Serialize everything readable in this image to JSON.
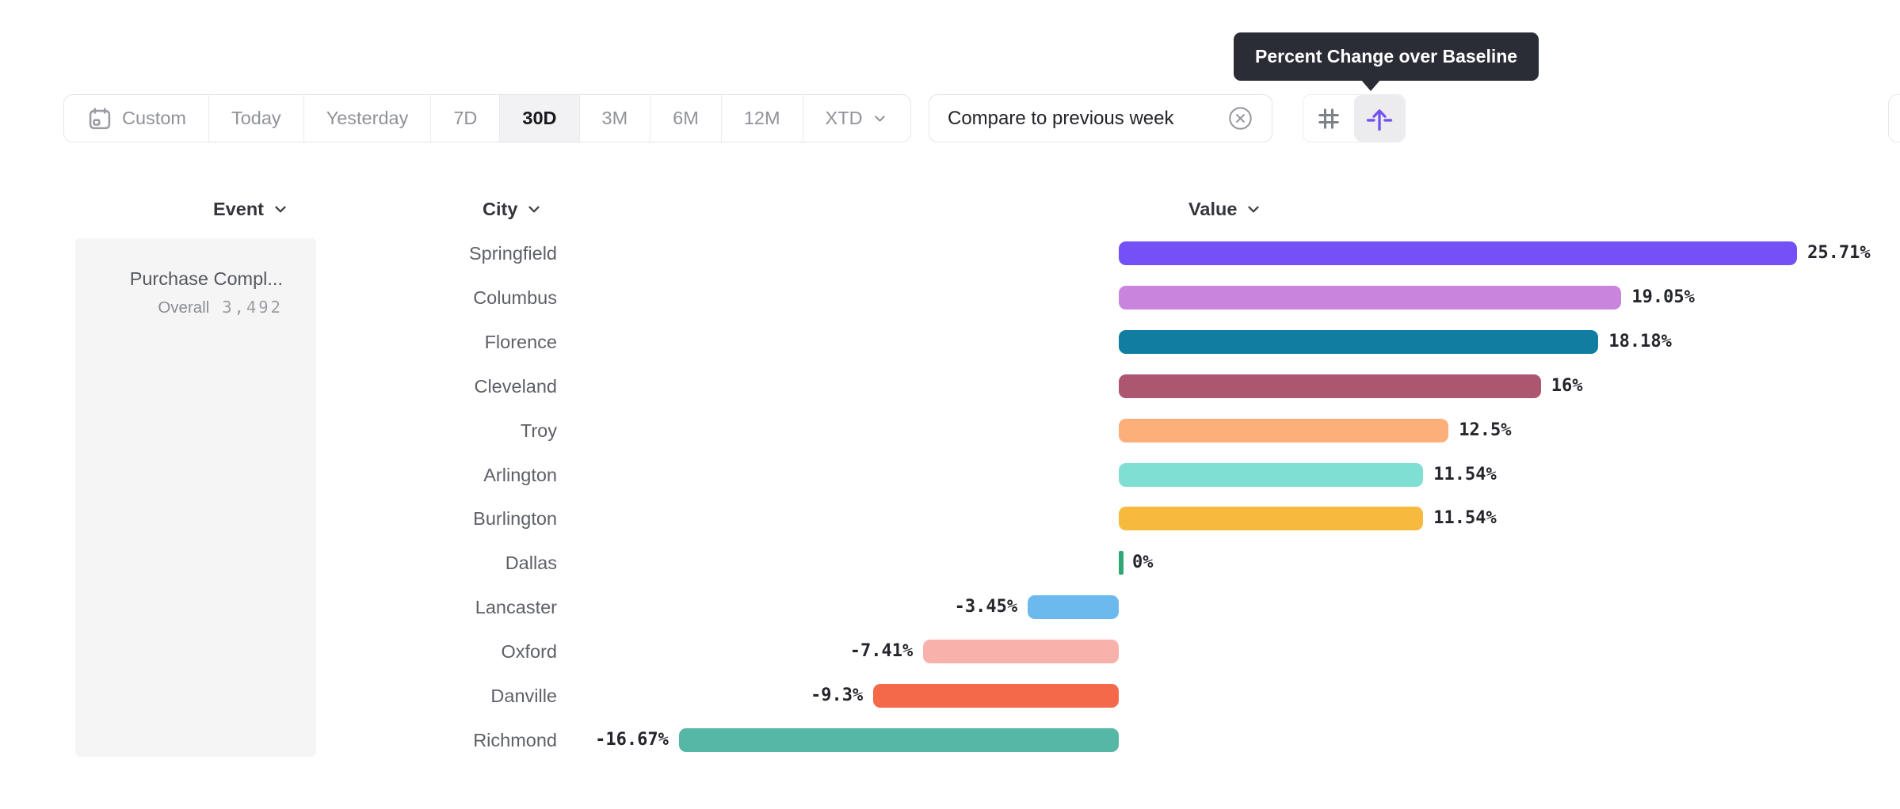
{
  "tooltip": {
    "text": "Percent Change over Baseline"
  },
  "toolbar": {
    "date_ranges": [
      {
        "label": "Custom",
        "icon": "calendar-icon",
        "selected": false
      },
      {
        "label": "Today",
        "selected": false
      },
      {
        "label": "Yesterday",
        "selected": false
      },
      {
        "label": "7D",
        "selected": false
      },
      {
        "label": "30D",
        "selected": true
      },
      {
        "label": "3M",
        "selected": false
      },
      {
        "label": "6M",
        "selected": false
      },
      {
        "label": "12M",
        "selected": false
      },
      {
        "label": "XTD",
        "icon": "chevron-down-icon",
        "selected": false
      }
    ],
    "compare_chip": {
      "label": "Compare to previous week",
      "icon": "circle-x-icon"
    },
    "view_toggle": [
      {
        "name": "number-format-view",
        "icon": "hash-icon",
        "selected": false
      },
      {
        "name": "percent-change-over-baseline-view",
        "icon": "arrow-up-baseline-icon",
        "selected": true
      }
    ],
    "accent_color": "#7352f0",
    "icon_gray": "#7e8187"
  },
  "table": {
    "columns": [
      {
        "label": "Event"
      },
      {
        "label": "City"
      },
      {
        "label": "Value"
      }
    ],
    "event_card": {
      "title": "Purchase Compl...",
      "overall_label": "Overall",
      "overall_value": "3,492"
    }
  },
  "chart_data": {
    "type": "bar",
    "orientation": "horizontal",
    "title": "Percent Change over Baseline",
    "unit": "%",
    "baseline": 0,
    "xlim": [
      -16.67,
      25.71
    ],
    "categories": [
      "Springfield",
      "Columbus",
      "Florence",
      "Cleveland",
      "Troy",
      "Arlington",
      "Burlington",
      "Dallas",
      "Lancaster",
      "Oxford",
      "Danville",
      "Richmond"
    ],
    "values": [
      25.71,
      19.05,
      18.18,
      16,
      12.5,
      11.54,
      11.54,
      0,
      -3.45,
      -7.41,
      -9.3,
      -16.67
    ],
    "rows": [
      {
        "city": "Springfield",
        "value": 25.71,
        "label": "25.71%",
        "color": "#7451f6"
      },
      {
        "city": "Columbus",
        "value": 19.05,
        "label": "19.05%",
        "color": "#c985de"
      },
      {
        "city": "Florence",
        "value": 18.18,
        "label": "18.18%",
        "color": "#107da1"
      },
      {
        "city": "Cleveland",
        "value": 16,
        "label": "16%",
        "color": "#ad5670"
      },
      {
        "city": "Troy",
        "value": 12.5,
        "label": "12.5%",
        "color": "#fdaf79"
      },
      {
        "city": "Arlington",
        "value": 11.54,
        "label": "11.54%",
        "color": "#7edfd2"
      },
      {
        "city": "Burlington",
        "value": 11.54,
        "label": "11.54%",
        "color": "#f5ba3e"
      },
      {
        "city": "Dallas",
        "value": 0,
        "label": "0%",
        "color": "#31a873"
      },
      {
        "city": "Lancaster",
        "value": -3.45,
        "label": "-3.45%",
        "color": "#6cb9ee"
      },
      {
        "city": "Oxford",
        "value": -7.41,
        "label": "-7.41%",
        "color": "#f9b2ab"
      },
      {
        "city": "Danville",
        "value": -9.3,
        "label": "-9.3%",
        "color": "#f4694a"
      },
      {
        "city": "Richmond",
        "value": -16.67,
        "label": "-16.67%",
        "color": "#57b7a6"
      }
    ]
  }
}
